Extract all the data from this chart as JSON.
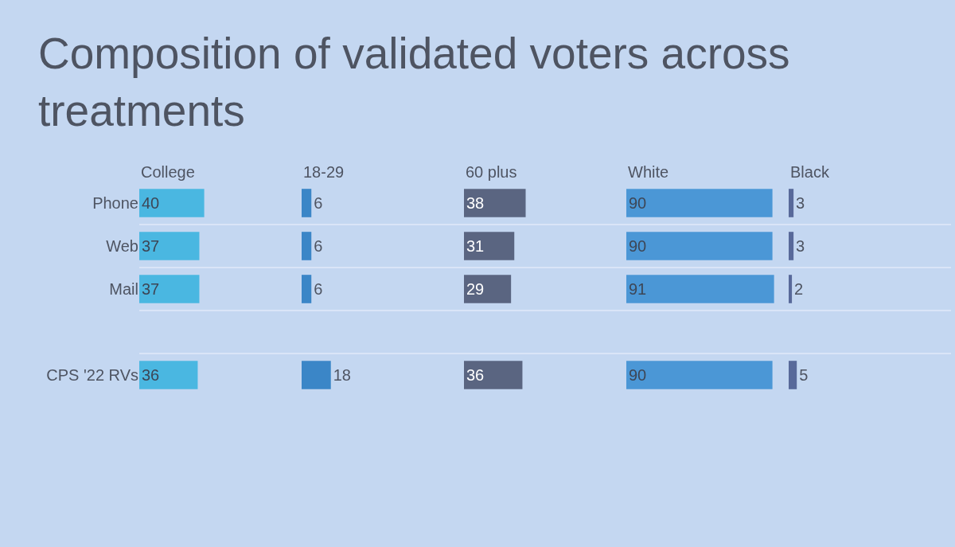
{
  "chart_data": [
    {
      "type": "other",
      "title": "Composition of validated voters across treatments"
    },
    {
      "type": "bar",
      "orientation": "horizontal",
      "title": "College",
      "categories": [
        "Phone",
        "Web",
        "Mail",
        null,
        "CPS '22 RVs"
      ],
      "values": [
        40,
        37,
        37,
        null,
        36
      ],
      "color": "#4ab7e1",
      "xlim": [
        0,
        100
      ],
      "data_labels": true,
      "grid": "y",
      "tick_labels": "y"
    },
    {
      "type": "bar",
      "orientation": "horizontal",
      "title": "18-29",
      "categories": [
        "Phone",
        "Web",
        "Mail",
        null,
        "CPS '22 RVs"
      ],
      "values": [
        6,
        6,
        6,
        null,
        18
      ],
      "color": "#3b86c7",
      "xlim": [
        0,
        100
      ],
      "data_labels": true,
      "grid": "y",
      "tick_labels": false
    },
    {
      "type": "bar",
      "orientation": "horizontal",
      "title": "60 plus",
      "categories": [
        "Phone",
        "Web",
        "Mail",
        null,
        "CPS '22 RVs"
      ],
      "values": [
        38,
        31,
        29,
        null,
        36
      ],
      "color": "#5a6581",
      "xlim": [
        0,
        100
      ],
      "data_labels": true,
      "grid": "y",
      "tick_labels": false
    },
    {
      "type": "bar",
      "orientation": "horizontal",
      "title": "White",
      "categories": [
        "Phone",
        "Web",
        "Mail",
        null,
        "CPS '22 RVs"
      ],
      "values": [
        90,
        90,
        91,
        null,
        90
      ],
      "color": "#4b97d6",
      "xlim": [
        0,
        100
      ],
      "data_labels": true,
      "grid": "y",
      "tick_labels": false
    },
    {
      "type": "bar",
      "orientation": "horizontal",
      "title": "Black",
      "categories": [
        "Phone",
        "Web",
        "Mail",
        null,
        "CPS '22 RVs"
      ],
      "values": [
        3,
        3,
        2,
        null,
        5
      ],
      "color": "#58699a",
      "xlim": [
        0,
        100
      ],
      "data_labels": true,
      "grid": "y",
      "tick_labels": false
    }
  ]
}
